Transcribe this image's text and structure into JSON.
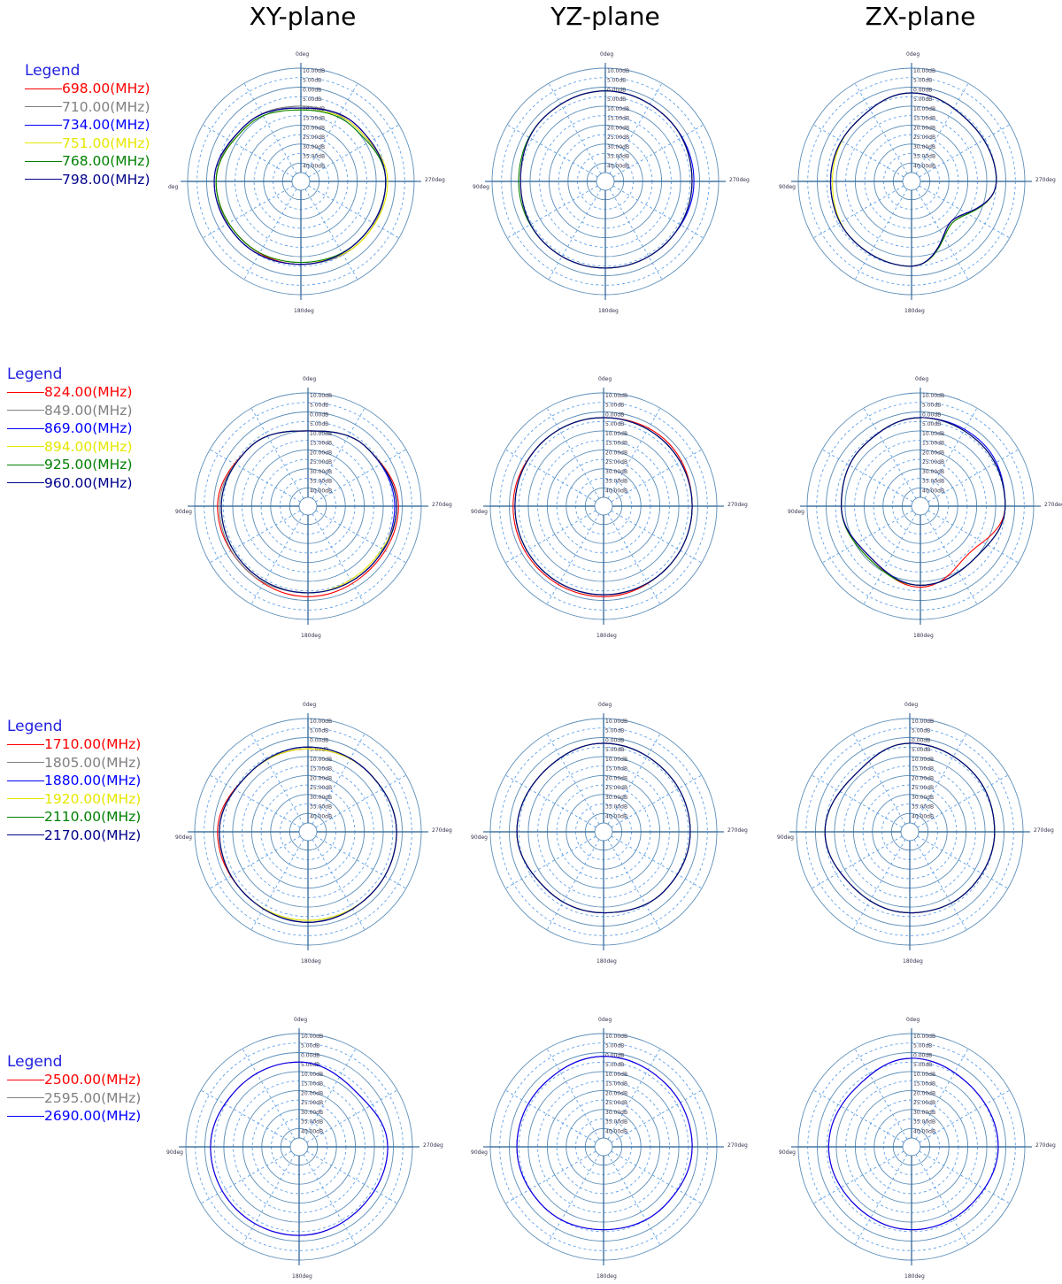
{
  "planes": [
    "XY-plane",
    "YZ-plane",
    "ZX-plane"
  ],
  "legend_title": "Legend",
  "rows": [
    {
      "legend": [
        {
          "label": "698.00(MHz)",
          "color": "#ff0000"
        },
        {
          "label": "710.00(MHz)",
          "color": "#808080"
        },
        {
          "label": "734.00(MHz)",
          "color": "#0000ff"
        },
        {
          "label": "751.00(MHz)",
          "color": "#e6e600"
        },
        {
          "label": "768.00(MHz)",
          "color": "#008000"
        },
        {
          "label": "798.00(MHz)",
          "color": "#00008b"
        }
      ]
    },
    {
      "legend": [
        {
          "label": "824.00(MHz)",
          "color": "#ff0000"
        },
        {
          "label": "849.00(MHz)",
          "color": "#808080"
        },
        {
          "label": "869.00(MHz)",
          "color": "#0000ff"
        },
        {
          "label": "894.00(MHz)",
          "color": "#e6e600"
        },
        {
          "label": "925.00(MHz)",
          "color": "#008000"
        },
        {
          "label": "960.00(MHz)",
          "color": "#00008b"
        }
      ]
    },
    {
      "legend": [
        {
          "label": "1710.00(MHz)",
          "color": "#ff0000"
        },
        {
          "label": "1805.00(MHz)",
          "color": "#808080"
        },
        {
          "label": "1880.00(MHz)",
          "color": "#0000ff"
        },
        {
          "label": "1920.00(MHz)",
          "color": "#e6e600"
        },
        {
          "label": "2110.00(MHz)",
          "color": "#008000"
        },
        {
          "label": "2170.00(MHz)",
          "color": "#00008b"
        }
      ]
    },
    {
      "legend": [
        {
          "label": "2500.00(MHz)",
          "color": "#ff0000"
        },
        {
          "label": "2595.00(MHz)",
          "color": "#808080"
        },
        {
          "label": "2690.00(MHz)",
          "color": "#0000ff"
        }
      ]
    }
  ],
  "chart_data": {
    "type": "polar",
    "radial_ticks": [
      "10.00dB",
      "5.00dB",
      "0.00dB",
      "-5.00dB",
      "-10.00dB",
      "-15.00dB",
      "-20.00dB",
      "-25.00dB",
      "-30.00dB",
      "-35.00dB",
      "-40.00dB"
    ],
    "radial_tick_labels": [
      "10.00dB",
      "5.00dB",
      "0.00dB",
      "5.00dB",
      "10.00dB",
      "15.00dB",
      "20.00dB",
      "25.00dB",
      "30.00dB",
      "35.00dB",
      "40.00dB"
    ],
    "rlim": [
      -45,
      10
    ],
    "angle_labels": {
      "top": "0deg",
      "left": "90deg",
      "bottom": "180deg",
      "right": "270deg"
    },
    "angle_labels_first_row_xy_left": "deg",
    "grid": true,
    "angles_deg": [
      0,
      45,
      90,
      135,
      180,
      225,
      270,
      315
    ],
    "series_note_units": "gain in dB at angles 0,45,90,135,180,225,270,315 deg",
    "charts": [
      [
        {
          "plane": "XY-plane",
          "series": [
            [
              -11,
              -8,
              -5,
              -6,
              -6,
              -6,
              -5,
              -8
            ],
            [
              -10,
              -8,
              -5,
              -5,
              -6,
              -5,
              -5,
              -9
            ],
            [
              -11,
              -8,
              -4,
              -5,
              -6,
              -6,
              -5,
              -8
            ],
            [
              -12,
              -9,
              -5,
              -6,
              -7,
              -5,
              -4,
              -9
            ],
            [
              -12,
              -9,
              -5,
              -6,
              -7,
              -6,
              -5,
              -10
            ],
            [
              -11,
              -8,
              -4,
              -5,
              -6,
              -6,
              -5,
              -8
            ]
          ]
        },
        {
          "plane": "YZ-plane",
          "series": [
            [
              -2,
              -3,
              -5,
              -4,
              -4,
              -4,
              -4,
              -3
            ],
            [
              -2,
              -3,
              -5,
              -4,
              -4,
              -4,
              -4,
              -3
            ],
            [
              -2,
              -3,
              -5,
              -4,
              -4,
              -4,
              -3,
              -3
            ],
            [
              -2,
              -3,
              -5,
              -4,
              -4,
              -4,
              -4,
              -3
            ],
            [
              -2,
              -3,
              -4,
              -4,
              -4,
              -4,
              -4,
              -3
            ],
            [
              -2,
              -3,
              -5,
              -4,
              -4,
              -4,
              -4,
              -3
            ]
          ]
        },
        {
          "plane": "ZX-plane",
          "series": [
            [
              -3,
              -7,
              -7,
              -6,
              -5,
              -20,
              -5,
              -6
            ],
            [
              -3,
              -7,
              -7,
              -6,
              -5,
              -19,
              -5,
              -6
            ],
            [
              -3,
              -7,
              -7,
              -6,
              -5,
              -20,
              -5,
              -6
            ],
            [
              -3,
              -7,
              -8,
              -6,
              -5,
              -19,
              -5,
              -6
            ],
            [
              -3,
              -7,
              -7,
              -6,
              -5,
              -19,
              -5,
              -6
            ],
            [
              -3,
              -7,
              -7,
              -6,
              -5,
              -20,
              -5,
              -6
            ]
          ]
        }
      ],
      [
        {
          "plane": "XY-plane",
          "series": [
            [
              -10,
              -6,
              -2,
              -3,
              -2,
              -3,
              -2,
              -6
            ],
            [
              -10,
              -6,
              -3,
              -3,
              -4,
              -4,
              -3,
              -6
            ],
            [
              -10,
              -6,
              -4,
              -4,
              -4,
              -4,
              -4,
              -6
            ],
            [
              -10,
              -6,
              -4,
              -4,
              -4,
              -5,
              -3,
              -6
            ],
            [
              -10,
              -6,
              -4,
              -4,
              -4,
              -4,
              -3,
              -6
            ],
            [
              -10,
              -6,
              -4,
              -4,
              -4,
              -4,
              -3,
              -6
            ]
          ]
        },
        {
          "plane": "YZ-plane",
          "series": [
            [
              -3,
              -3,
              -2,
              -2,
              -2,
              -3,
              -3,
              -2
            ],
            [
              -3,
              -3,
              -3,
              -3,
              -3,
              -3,
              -3,
              -3
            ],
            [
              -3,
              -3,
              -3,
              -3,
              -3,
              -3,
              -3,
              -3
            ],
            [
              -3,
              -3,
              -3,
              -3,
              -3,
              -3,
              -3,
              -3
            ],
            [
              -3,
              -3,
              -3,
              -3,
              -3,
              -3,
              -3,
              -3
            ],
            [
              -3,
              -3,
              -3,
              -3,
              -3,
              -3,
              -3,
              -3
            ]
          ]
        },
        {
          "plane": "ZX-plane",
          "series": [
            [
              -3,
              -6,
              -8,
              -12,
              -7,
              -14,
              -5,
              -4
            ],
            [
              -3,
              -6,
              -8,
              -11,
              -8,
              -10,
              -5,
              -4
            ],
            [
              -3,
              -6,
              -8,
              -12,
              -8,
              -10,
              -5,
              -3
            ],
            [
              -3,
              -6,
              -8,
              -11,
              -8,
              -10,
              -5,
              -4
            ],
            [
              -3,
              -6,
              -8,
              -11,
              -8,
              -10,
              -5,
              -4
            ],
            [
              -3,
              -6,
              -8,
              -12,
              -8,
              -10,
              -5,
              -4
            ]
          ]
        }
      ],
      [
        {
          "plane": "XY-plane",
          "series": [
            [
              -6,
              -6,
              -2,
              -3,
              -2,
              -3,
              -3,
              -5
            ],
            [
              -6,
              -6,
              -3,
              -3,
              -3,
              -3,
              -3,
              -5
            ],
            [
              -5,
              -6,
              -3,
              -3,
              -2,
              -3,
              -3,
              -5
            ],
            [
              -6,
              -6,
              -3,
              -3,
              -3,
              -3,
              -3,
              -5
            ],
            [
              -5,
              -6,
              -3,
              -3,
              -2,
              -3,
              -3,
              -5
            ],
            [
              -5,
              -6,
              -3,
              -3,
              -2,
              -3,
              -3,
              -5
            ]
          ]
        },
        {
          "plane": "YZ-plane",
          "series": [
            [
              -3,
              -5,
              -4,
              -7,
              -7,
              -5,
              -4,
              -4
            ],
            [
              -3,
              -5,
              -4,
              -7,
              -7,
              -5,
              -4,
              -4
            ],
            [
              -3,
              -5,
              -4,
              -7,
              -7,
              -5,
              -4,
              -4
            ],
            [
              -3,
              -5,
              -4,
              -7,
              -7,
              -5,
              -4,
              -4
            ],
            [
              -3,
              -5,
              -4,
              -7,
              -7,
              -5,
              -4,
              -4
            ],
            [
              -3,
              -5,
              -4,
              -7,
              -7,
              -5,
              -4,
              -4
            ]
          ]
        },
        {
          "plane": "ZX-plane",
          "series": [
            [
              -3,
              -8,
              -5,
              -8,
              -7,
              -6,
              -5,
              -4
            ],
            [
              -3,
              -8,
              -5,
              -8,
              -7,
              -6,
              -5,
              -4
            ],
            [
              -3,
              -8,
              -5,
              -8,
              -7,
              -6,
              -5,
              -4
            ],
            [
              -3,
              -8,
              -5,
              -8,
              -7,
              -6,
              -5,
              -4
            ],
            [
              -3,
              -8,
              -5,
              -8,
              -7,
              -6,
              -5,
              -4
            ],
            [
              -3,
              -8,
              -5,
              -8,
              -7,
              -6,
              -5,
              -4
            ]
          ]
        }
      ],
      [
        {
          "plane": "XY-plane",
          "series": [
            [
              -5,
              -5,
              -3,
              -3,
              -3,
              -4,
              -3,
              -8
            ],
            [
              -5,
              -5,
              -3,
              -3,
              -3,
              -4,
              -3,
              -8
            ],
            [
              -5,
              -5,
              -3,
              -3,
              -3,
              -4,
              -3,
              -8
            ]
          ]
        },
        {
          "plane": "YZ-plane",
          "series": [
            [
              -2,
              -4,
              -4,
              -5,
              -6,
              -5,
              -3,
              -3
            ],
            [
              -2,
              -4,
              -4,
              -5,
              -6,
              -5,
              -3,
              -3
            ],
            [
              -2,
              -4,
              -4,
              -5,
              -6,
              -5,
              -3,
              -3
            ]
          ]
        },
        {
          "plane": "ZX-plane",
          "series": [
            [
              -3,
              -7,
              -6,
              -7,
              -6,
              -6,
              -4,
              -5
            ],
            [
              -3,
              -7,
              -6,
              -7,
              -6,
              -6,
              -4,
              -5
            ],
            [
              -3,
              -7,
              -6,
              -7,
              -6,
              -6,
              -4,
              -5
            ]
          ]
        }
      ]
    ]
  }
}
